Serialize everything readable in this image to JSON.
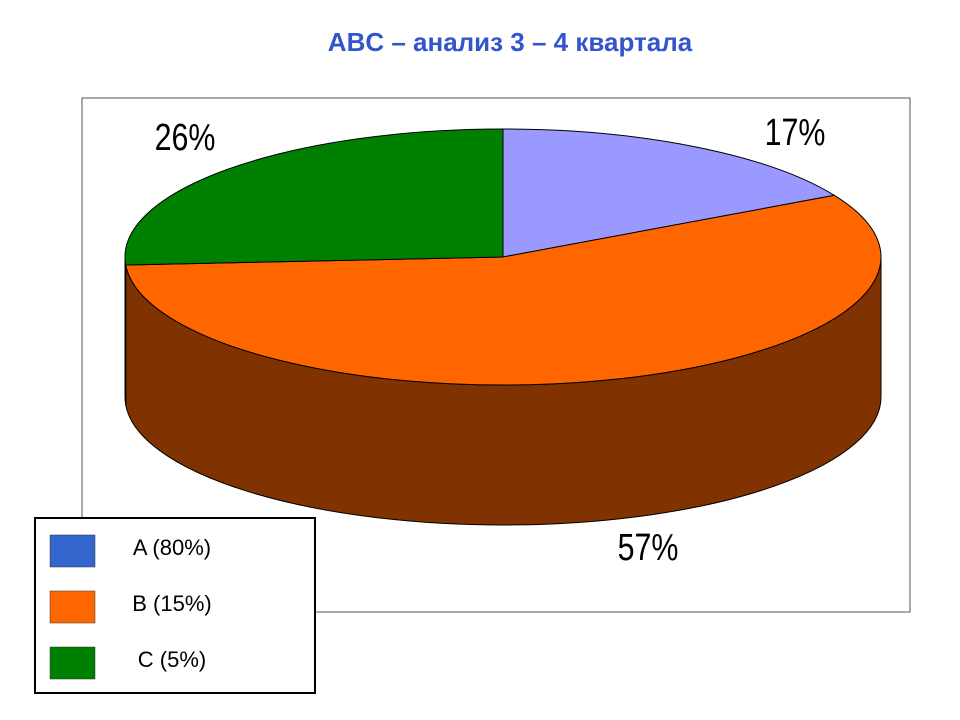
{
  "chart_data": {
    "type": "pie",
    "title": "ABC – анализ 3 – 4 квартала",
    "categories": [
      "A (80%)",
      "B (15%)",
      "C (5%)"
    ],
    "values": [
      17,
      57,
      26
    ],
    "value_labels": [
      "17%",
      "57%",
      "26%"
    ],
    "colors": [
      "#9999ff",
      "#ff6600",
      "#008000"
    ],
    "legend_colors": [
      "#3366cc",
      "#ff6600",
      "#008000"
    ],
    "legend": "bottom-left"
  }
}
